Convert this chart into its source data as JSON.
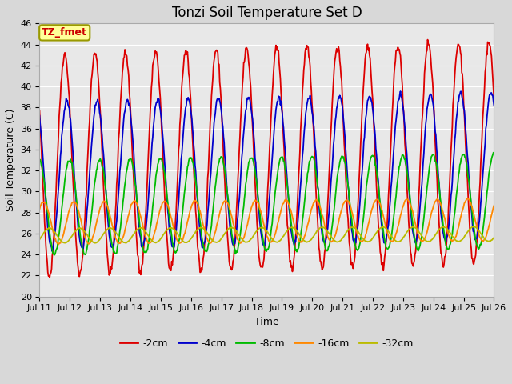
{
  "title": "Tonzi Soil Temperature Set D",
  "xlabel": "Time",
  "ylabel": "Soil Temperature (C)",
  "ylim": [
    20,
    46
  ],
  "xlim_days": [
    0,
    15
  ],
  "xtick_labels": [
    "Jul 11",
    "Jul 12",
    "Jul 13",
    "Jul 14",
    "Jul 15",
    "Jul 16",
    "Jul 17",
    "Jul 18",
    "Jul 19",
    "Jul 20",
    "Jul 21",
    "Jul 22",
    "Jul 23",
    "Jul 24",
    "Jul 25",
    "Jul 26"
  ],
  "series": {
    "-2cm": {
      "color": "#dd0000",
      "amplitude": 10.5,
      "mean": 32.5,
      "phase": 0.0,
      "trend": 0.08
    },
    "-4cm": {
      "color": "#0000cc",
      "amplitude": 7.0,
      "mean": 31.5,
      "phase": 0.07,
      "trend": 0.06
    },
    "-8cm": {
      "color": "#00bb00",
      "amplitude": 4.5,
      "mean": 28.5,
      "phase": 0.16,
      "trend": 0.04
    },
    "-16cm": {
      "color": "#ff8800",
      "amplitude": 2.0,
      "mean": 27.0,
      "phase": 0.3,
      "trend": 0.02
    },
    "-32cm": {
      "color": "#bbbb00",
      "amplitude": 0.7,
      "mean": 25.8,
      "phase": 0.5,
      "trend": 0.01
    }
  },
  "label_text": "TZ_fmet",
  "label_bg": "#ffff99",
  "label_edge": "#999900",
  "label_text_color": "#cc0000",
  "background_color": "#e8e8e8",
  "grid_color": "#ffffff",
  "title_fontsize": 12,
  "axis_fontsize": 9,
  "tick_fontsize": 8,
  "legend_fontsize": 9,
  "line_width": 1.3,
  "n_points": 720,
  "fig_width": 6.4,
  "fig_height": 4.8,
  "dpi": 100
}
